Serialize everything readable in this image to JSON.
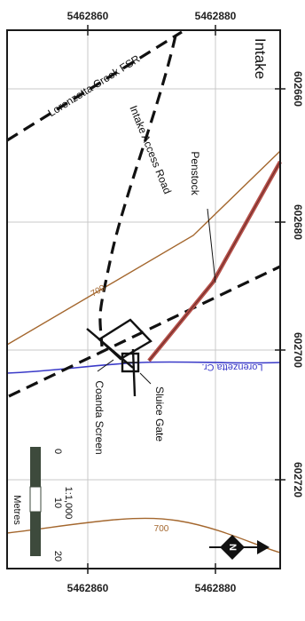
{
  "map": {
    "title": "Intake",
    "labels": {
      "fsr": "Lorenzetta Creek FSR",
      "access_road": "Intake Access Road",
      "penstock": "Penstock",
      "creek": "Lorenzetta Cr.",
      "sluice_gate": "Sluice Gate",
      "coanda_screen": "Coanda Screen",
      "contour_700_a": "700",
      "contour_700_b": "700"
    },
    "grid": {
      "easting_top": [
        "5462860",
        "5462880"
      ],
      "easting_bottom": [
        "5462860",
        "5462880"
      ],
      "northing_right": [
        "602660",
        "602680",
        "602700",
        "602720"
      ]
    },
    "scale_bar": {
      "ratio": "1:1,000",
      "ticks": [
        "0",
        "10",
        "20"
      ],
      "unit": "Metres"
    },
    "north_arrow": {
      "label": "N"
    },
    "colors": {
      "penstock": "#b5504a",
      "creek": "#3a3ac8",
      "contour": "#a4672e",
      "grid": "#c8c8c8",
      "frame": "#1a1a1a",
      "scale_bar": "#3d4a3c"
    }
  }
}
